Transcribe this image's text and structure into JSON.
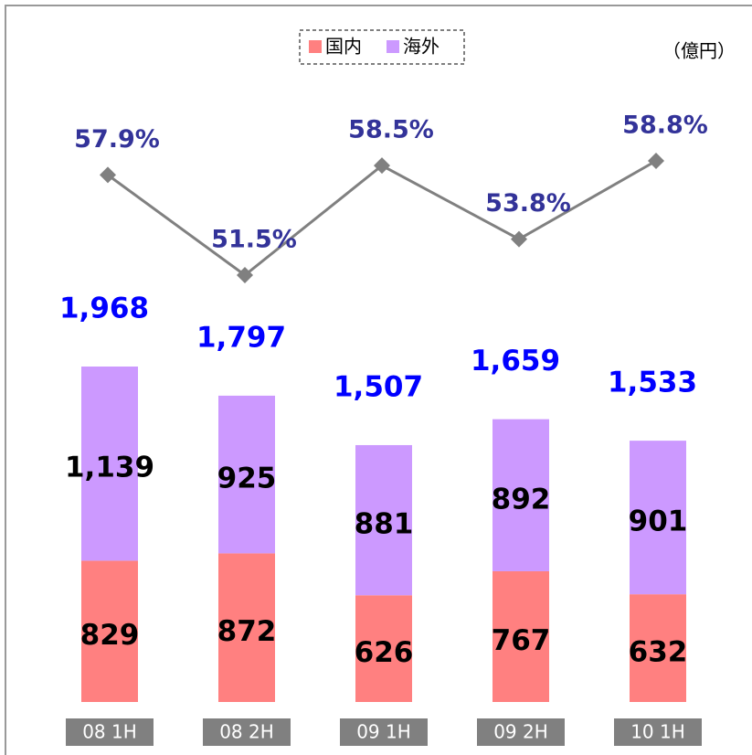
{
  "chart_data": [
    {
      "type": "bar",
      "unit": "（億円）",
      "categories": [
        "08 1H",
        "08 2H",
        "09 1H",
        "09 2H",
        "10 1H"
      ],
      "series": [
        {
          "name": "国内",
          "color": "#ff8080",
          "values": [
            829,
            872,
            626,
            767,
            632
          ]
        },
        {
          "name": "海外",
          "color": "#cc99ff",
          "values": [
            1139,
            925,
            881,
            892,
            901
          ],
          "value_labels": [
            "1,139",
            "925",
            "881",
            "892",
            "901"
          ]
        }
      ],
      "totals": {
        "color": "#0000ff",
        "values": [
          1968,
          1797,
          1507,
          1659,
          1533
        ],
        "value_labels": [
          "1,968",
          "1,797",
          "1,507",
          "1,659",
          "1,533"
        ]
      }
    },
    {
      "type": "line",
      "color": "#808080",
      "label_color": "#333399",
      "values": [
        57.9,
        51.5,
        58.5,
        53.8,
        58.8
      ],
      "value_labels": [
        "57.9%",
        "51.5%",
        "58.5%",
        "53.8%",
        "58.8%"
      ]
    }
  ]
}
